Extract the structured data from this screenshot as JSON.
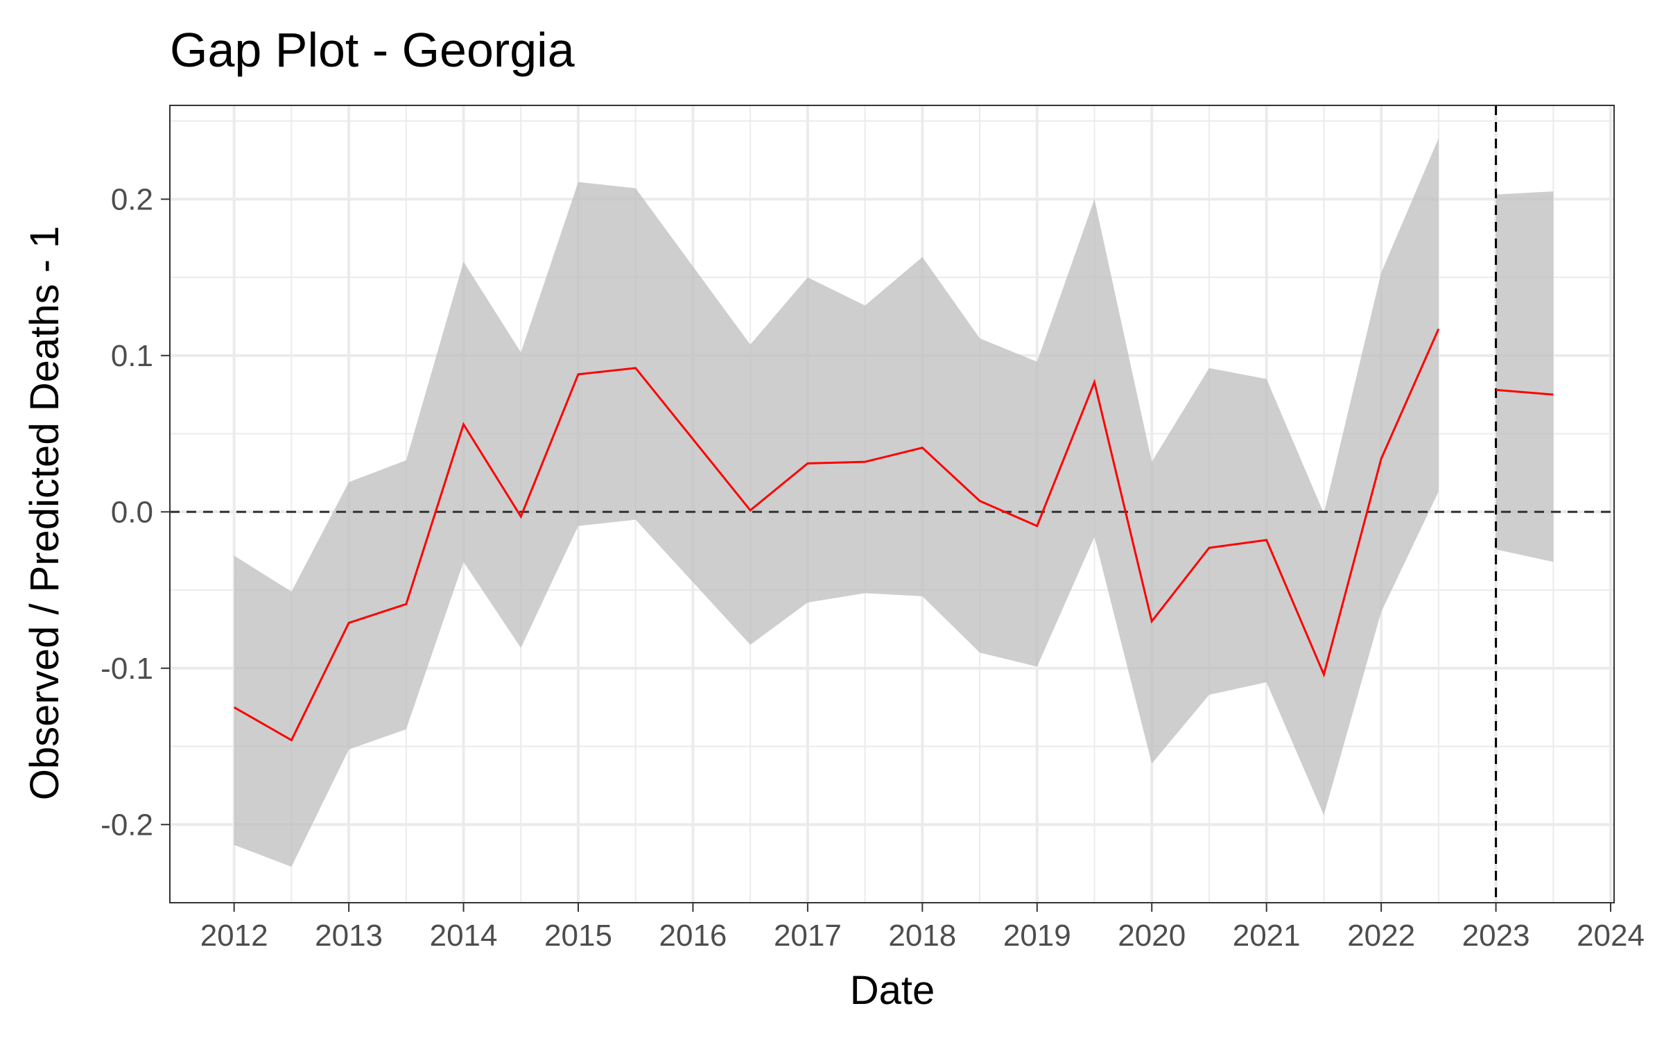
{
  "chart_data": {
    "type": "line",
    "title": "Gap Plot - Georgia",
    "xlabel": "Date",
    "ylabel": "Observed / Predicted Deaths - 1",
    "xlim": [
      2011.44,
      2024.03
    ],
    "ylim": [
      -0.25,
      0.26
    ],
    "x_ticks": [
      "2012",
      "2013",
      "2014",
      "2015",
      "2016",
      "2017",
      "2018",
      "2019",
      "2020",
      "2021",
      "2022",
      "2023",
      "2024"
    ],
    "y_ticks": [
      "-0.2",
      "-0.1",
      "0.0",
      "0.1",
      "0.2"
    ],
    "grid": true,
    "reference_lines": {
      "horizontal_y": 0.0,
      "vertical_x": 2023.0
    },
    "colors": {
      "series_line": "#ff0000",
      "band_fill": "#bdbdbd",
      "grid": "#ebebeb",
      "panel_border": "#333333",
      "reference_line": "#333333"
    },
    "series": [
      {
        "segment": "pre",
        "x": [
          2012.0,
          2012.5,
          2013.0,
          2013.5,
          2014.0,
          2014.5,
          2015.0,
          2015.5,
          2016.5,
          2017.0,
          2017.5,
          2018.0,
          2018.5,
          2019.0,
          2019.5,
          2020.0,
          2020.5,
          2021.0,
          2021.5,
          2022.0,
          2022.5
        ],
        "y": [
          -0.125,
          -0.146,
          -0.071,
          -0.059,
          0.056,
          -0.003,
          0.088,
          0.092,
          0.001,
          0.031,
          0.032,
          0.041,
          0.007,
          -0.009,
          0.083,
          -0.07,
          -0.023,
          -0.018,
          -0.104,
          0.034,
          0.117
        ],
        "lower": [
          -0.213,
          -0.227,
          -0.152,
          -0.139,
          -0.032,
          -0.087,
          -0.009,
          -0.005,
          -0.085,
          -0.058,
          -0.052,
          -0.054,
          -0.09,
          -0.099,
          -0.016,
          -0.161,
          -0.117,
          -0.109,
          -0.194,
          -0.064,
          0.013
        ],
        "upper": [
          -0.028,
          -0.051,
          0.019,
          0.033,
          0.16,
          0.102,
          0.211,
          0.207,
          0.107,
          0.15,
          0.132,
          0.163,
          0.111,
          0.096,
          0.2,
          0.032,
          0.092,
          0.085,
          -0.001,
          0.153,
          0.239
        ]
      },
      {
        "segment": "post",
        "x": [
          2023.0,
          2023.5
        ],
        "y": [
          0.078,
          0.075
        ],
        "lower": [
          -0.024,
          -0.032
        ],
        "upper": [
          0.203,
          0.205
        ]
      }
    ]
  }
}
